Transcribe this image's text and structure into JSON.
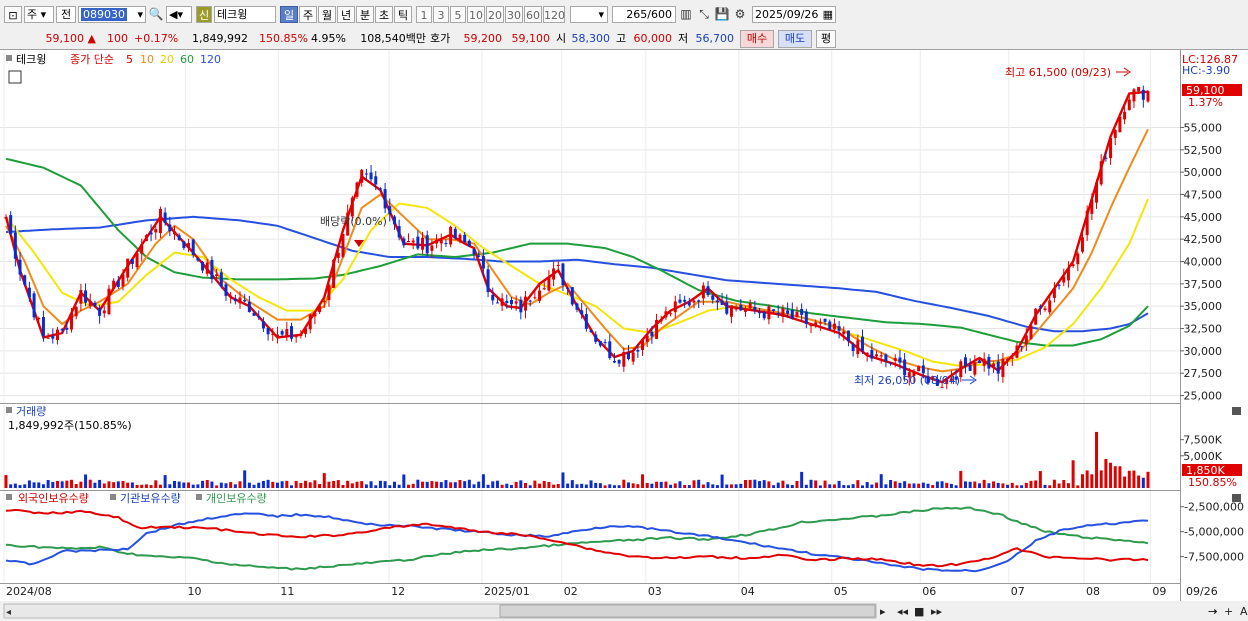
{
  "toolbar": {
    "market": "주",
    "prev_label": "전",
    "code": "089030",
    "shin_label": "신",
    "name": "테크윙",
    "periods": [
      "일",
      "주",
      "월",
      "년",
      "분",
      "초",
      "틱"
    ],
    "active_period": "일",
    "intervals": [
      "1",
      "3",
      "5",
      "10",
      "20",
      "30",
      "60",
      "120"
    ],
    "count": "265",
    "count_total": "/600",
    "date": "2025/09/26"
  },
  "quote": {
    "price": "59,100",
    "change": "100",
    "change_pct": "+0.17%",
    "volume": "1,849,992",
    "volume_ratio": "150.85%",
    "turnover_pct": "4.95%",
    "amount": "108,540백만",
    "ask_label": "호가",
    "ask": "59,200",
    "bid": "59,100",
    "open_label": "시",
    "open": "58,300",
    "high_label": "고",
    "high": "60,000",
    "low_label": "저",
    "low": "56,700",
    "buy_label": "매수",
    "sell_label": "매도",
    "eval_label": "평"
  },
  "price_panel": {
    "name_tag": "테크윙",
    "ma_title": "종가 단순",
    "ma_periods": [
      "5",
      "10",
      "20",
      "60",
      "120"
    ],
    "lc_label": "LC:126.87",
    "hc_label": "HC:-3.90",
    "current_price": "59,100",
    "current_pct": "1.37%",
    "high_note": "최고 61,500 (09/23)",
    "low_note": "최저 26,050 (08/04)",
    "dividend_note": "배당락(0.0%)"
  },
  "volume_panel": {
    "title": "거래량",
    "value": "1,849,992주(150.85%)",
    "current": "1,850K",
    "current_pct": "150.85%"
  },
  "holdings_panel": {
    "series": [
      "외국인보유수량",
      "기관보유수량",
      "개인보유수량"
    ]
  },
  "x_axis": {
    "month_labels": [
      "2024/08",
      "10",
      "11",
      "12",
      "2025/01",
      "02",
      "03",
      "04",
      "05",
      "06",
      "07",
      "08",
      "09"
    ],
    "end_label": "09/26"
  },
  "colors": {
    "up": "#e00000",
    "down": "#0a2bd0",
    "ma5": "#e00000",
    "ma10": "#f08a18",
    "ma20": "#f5e60a",
    "ma60": "#1e9e3a",
    "ma120": "#2650e0",
    "foreign": "#e00000",
    "institution": "#2650e0",
    "individual": "#2e9a4e"
  },
  "chart_data": {
    "type": "candlestick",
    "y_ticks": [
      "55,000",
      "52,500",
      "50,000",
      "47,500",
      "45,000",
      "42,500",
      "40,000",
      "37,500",
      "35,000",
      "32,500",
      "30,000",
      "27,500",
      "25,000"
    ],
    "ylim": [
      24500,
      63000
    ],
    "volume_ticks": [
      "7,500K",
      "5,000K"
    ],
    "holdings_ticks": [
      "-2,500,000",
      "-5,000,000",
      "-7,500,000"
    ],
    "ma_anchors": {
      "ma5": [
        [
          0,
          45000
        ],
        [
          3,
          39000
        ],
        [
          8,
          31500
        ],
        [
          12,
          32000
        ],
        [
          16,
          36500
        ],
        [
          20,
          34500
        ],
        [
          26,
          39500
        ],
        [
          33,
          45000
        ],
        [
          40,
          41000
        ],
        [
          48,
          36000
        ],
        [
          52,
          35000
        ],
        [
          58,
          31500
        ],
        [
          63,
          31800
        ],
        [
          68,
          36000
        ],
        [
          72,
          43500
        ],
        [
          76,
          49500
        ],
        [
          80,
          48000
        ],
        [
          85,
          42000
        ],
        [
          90,
          41800
        ],
        [
          95,
          43000
        ],
        [
          98,
          42000
        ],
        [
          100,
          41500
        ],
        [
          103,
          37000
        ],
        [
          107,
          35000
        ],
        [
          110,
          34800
        ],
        [
          114,
          37500
        ],
        [
          118,
          39000
        ],
        [
          122,
          35000
        ],
        [
          126,
          31500
        ],
        [
          130,
          29300
        ],
        [
          134,
          30000
        ],
        [
          138,
          32500
        ],
        [
          142,
          34500
        ],
        [
          146,
          35500
        ],
        [
          150,
          37000
        ],
        [
          154,
          35000
        ],
        [
          160,
          34500
        ],
        [
          166,
          34000
        ],
        [
          172,
          33000
        ],
        [
          178,
          32000
        ],
        [
          184,
          29500
        ],
        [
          190,
          28500
        ],
        [
          196,
          27200
        ],
        [
          200,
          26500
        ],
        [
          204,
          28000
        ],
        [
          208,
          29200
        ],
        [
          212,
          27800
        ],
        [
          216,
          30000
        ],
        [
          220,
          34000
        ],
        [
          224,
          37000
        ],
        [
          228,
          40000
        ],
        [
          232,
          47000
        ],
        [
          236,
          54000
        ],
        [
          240,
          58800
        ],
        [
          244,
          59000
        ]
      ],
      "ma10": [
        [
          0,
          44000
        ],
        [
          4,
          40000
        ],
        [
          8,
          35000
        ],
        [
          12,
          33000
        ],
        [
          16,
          34500
        ],
        [
          20,
          35500
        ],
        [
          26,
          37500
        ],
        [
          32,
          42000
        ],
        [
          36,
          44000
        ],
        [
          40,
          42500
        ],
        [
          46,
          38000
        ],
        [
          52,
          35500
        ],
        [
          58,
          33500
        ],
        [
          63,
          33500
        ],
        [
          68,
          35000
        ],
        [
          72,
          40500
        ],
        [
          76,
          46000
        ],
        [
          80,
          47500
        ],
        [
          85,
          45000
        ],
        [
          90,
          42500
        ],
        [
          95,
          42500
        ],
        [
          100,
          42000
        ],
        [
          104,
          39000
        ],
        [
          108,
          36000
        ],
        [
          112,
          35200
        ],
        [
          116,
          36500
        ],
        [
          120,
          37500
        ],
        [
          124,
          35000
        ],
        [
          128,
          32500
        ],
        [
          132,
          30200
        ],
        [
          136,
          30500
        ],
        [
          140,
          32500
        ],
        [
          144,
          34000
        ],
        [
          148,
          35500
        ],
        [
          154,
          35500
        ],
        [
          160,
          34800
        ],
        [
          166,
          34200
        ],
        [
          172,
          33500
        ],
        [
          178,
          32600
        ],
        [
          184,
          30600
        ],
        [
          190,
          29000
        ],
        [
          196,
          28100
        ],
        [
          200,
          27700
        ],
        [
          204,
          28000
        ],
        [
          208,
          28800
        ],
        [
          212,
          28900
        ],
        [
          216,
          29600
        ],
        [
          220,
          32000
        ],
        [
          224,
          34500
        ],
        [
          228,
          37000
        ],
        [
          232,
          41000
        ],
        [
          236,
          46000
        ],
        [
          240,
          50500
        ],
        [
          244,
          54800
        ]
      ],
      "ma20": [
        [
          0,
          45000
        ],
        [
          6,
          41000
        ],
        [
          12,
          36500
        ],
        [
          18,
          35000
        ],
        [
          24,
          35500
        ],
        [
          30,
          38500
        ],
        [
          36,
          41000
        ],
        [
          42,
          40500
        ],
        [
          48,
          38000
        ],
        [
          54,
          36000
        ],
        [
          60,
          34500
        ],
        [
          66,
          34500
        ],
        [
          72,
          38000
        ],
        [
          78,
          43500
        ],
        [
          84,
          46500
        ],
        [
          90,
          46000
        ],
        [
          96,
          44000
        ],
        [
          102,
          41500
        ],
        [
          108,
          39500
        ],
        [
          114,
          37500
        ],
        [
          120,
          36300
        ],
        [
          126,
          35000
        ],
        [
          132,
          32500
        ],
        [
          138,
          32000
        ],
        [
          144,
          33200
        ],
        [
          150,
          34500
        ],
        [
          156,
          35000
        ],
        [
          162,
          34600
        ],
        [
          168,
          34000
        ],
        [
          174,
          33200
        ],
        [
          180,
          32000
        ],
        [
          186,
          31000
        ],
        [
          192,
          30000
        ],
        [
          198,
          28800
        ],
        [
          204,
          28300
        ],
        [
          210,
          28500
        ],
        [
          216,
          29000
        ],
        [
          222,
          30400
        ],
        [
          228,
          33000
        ],
        [
          234,
          37000
        ],
        [
          240,
          42000
        ],
        [
          244,
          47000
        ]
      ],
      "ma60": [
        [
          0,
          51500
        ],
        [
          8,
          50500
        ],
        [
          16,
          48500
        ],
        [
          24,
          43500
        ],
        [
          30,
          40500
        ],
        [
          36,
          38800
        ],
        [
          42,
          38200
        ],
        [
          50,
          38000
        ],
        [
          58,
          38000
        ],
        [
          66,
          38100
        ],
        [
          72,
          38500
        ],
        [
          80,
          39500
        ],
        [
          88,
          40800
        ],
        [
          96,
          40500
        ],
        [
          104,
          41000
        ],
        [
          112,
          42000
        ],
        [
          120,
          42000
        ],
        [
          128,
          41500
        ],
        [
          134,
          40500
        ],
        [
          140,
          39000
        ],
        [
          148,
          36800
        ],
        [
          156,
          35600
        ],
        [
          164,
          35000
        ],
        [
          172,
          34200
        ],
        [
          180,
          33700
        ],
        [
          188,
          33200
        ],
        [
          196,
          33000
        ],
        [
          204,
          32600
        ],
        [
          210,
          31800
        ],
        [
          216,
          31000
        ],
        [
          222,
          30600
        ],
        [
          228,
          30600
        ],
        [
          234,
          31300
        ],
        [
          240,
          32800
        ],
        [
          244,
          35000
        ]
      ],
      "ma120": [
        [
          0,
          43300
        ],
        [
          10,
          43600
        ],
        [
          20,
          43800
        ],
        [
          30,
          44600
        ],
        [
          40,
          45000
        ],
        [
          50,
          44600
        ],
        [
          58,
          44000
        ],
        [
          66,
          42600
        ],
        [
          74,
          41200
        ],
        [
          82,
          40500
        ],
        [
          90,
          40500
        ],
        [
          98,
          40300
        ],
        [
          106,
          40000
        ],
        [
          114,
          40000
        ],
        [
          122,
          40200
        ],
        [
          130,
          39700
        ],
        [
          138,
          39300
        ],
        [
          146,
          38600
        ],
        [
          154,
          37900
        ],
        [
          162,
          37600
        ],
        [
          170,
          37300
        ],
        [
          178,
          37000
        ],
        [
          186,
          36600
        ],
        [
          194,
          35600
        ],
        [
          202,
          34800
        ],
        [
          210,
          33900
        ],
        [
          218,
          32700
        ],
        [
          224,
          32200
        ],
        [
          230,
          32200
        ],
        [
          236,
          32500
        ],
        [
          240,
          33000
        ],
        [
          244,
          34200
        ]
      ]
    },
    "holdings_anchors": {
      "foreign": [
        [
          0,
          0.1
        ],
        [
          8,
          0.15
        ],
        [
          16,
          0.12
        ],
        [
          24,
          0.2
        ],
        [
          28,
          0.33
        ],
        [
          36,
          0.32
        ],
        [
          44,
          0.34
        ],
        [
          52,
          0.4
        ],
        [
          62,
          0.45
        ],
        [
          72,
          0.42
        ],
        [
          82,
          0.33
        ],
        [
          90,
          0.28
        ],
        [
          100,
          0.37
        ],
        [
          110,
          0.42
        ],
        [
          118,
          0.5
        ],
        [
          126,
          0.62
        ],
        [
          134,
          0.7
        ],
        [
          142,
          0.72
        ],
        [
          150,
          0.7
        ],
        [
          158,
          0.72
        ],
        [
          166,
          0.68
        ],
        [
          172,
          0.75
        ],
        [
          180,
          0.72
        ],
        [
          188,
          0.74
        ],
        [
          196,
          0.82
        ],
        [
          204,
          0.8
        ],
        [
          210,
          0.72
        ],
        [
          216,
          0.6
        ],
        [
          222,
          0.7
        ],
        [
          230,
          0.72
        ],
        [
          236,
          0.74
        ],
        [
          244,
          0.74
        ]
      ],
      "institution": [
        [
          0,
          0.75
        ],
        [
          6,
          0.8
        ],
        [
          12,
          0.63
        ],
        [
          20,
          0.62
        ],
        [
          26,
          0.6
        ],
        [
          30,
          0.4
        ],
        [
          36,
          0.3
        ],
        [
          40,
          0.25
        ],
        [
          46,
          0.18
        ],
        [
          52,
          0.15
        ],
        [
          58,
          0.18
        ],
        [
          64,
          0.16
        ],
        [
          70,
          0.2
        ],
        [
          76,
          0.28
        ],
        [
          84,
          0.3
        ],
        [
          92,
          0.34
        ],
        [
          100,
          0.38
        ],
        [
          108,
          0.42
        ],
        [
          116,
          0.44
        ],
        [
          124,
          0.35
        ],
        [
          130,
          0.3
        ],
        [
          136,
          0.33
        ],
        [
          142,
          0.38
        ],
        [
          150,
          0.44
        ],
        [
          158,
          0.52
        ],
        [
          166,
          0.6
        ],
        [
          174,
          0.68
        ],
        [
          182,
          0.74
        ],
        [
          190,
          0.82
        ],
        [
          196,
          0.86
        ],
        [
          202,
          0.88
        ],
        [
          208,
          0.88
        ],
        [
          214,
          0.75
        ],
        [
          220,
          0.5
        ],
        [
          226,
          0.35
        ],
        [
          232,
          0.3
        ],
        [
          236,
          0.28
        ],
        [
          244,
          0.24
        ]
      ],
      "individual": [
        [
          0,
          0.55
        ],
        [
          8,
          0.58
        ],
        [
          14,
          0.6
        ],
        [
          20,
          0.58
        ],
        [
          26,
          0.66
        ],
        [
          32,
          0.7
        ],
        [
          40,
          0.72
        ],
        [
          48,
          0.8
        ],
        [
          56,
          0.84
        ],
        [
          62,
          0.86
        ],
        [
          70,
          0.82
        ],
        [
          78,
          0.78
        ],
        [
          86,
          0.74
        ],
        [
          92,
          0.68
        ],
        [
          100,
          0.62
        ],
        [
          108,
          0.6
        ],
        [
          116,
          0.56
        ],
        [
          124,
          0.52
        ],
        [
          130,
          0.5
        ],
        [
          136,
          0.48
        ],
        [
          142,
          0.46
        ],
        [
          150,
          0.48
        ],
        [
          158,
          0.42
        ],
        [
          164,
          0.35
        ],
        [
          170,
          0.26
        ],
        [
          178,
          0.22
        ],
        [
          186,
          0.18
        ],
        [
          194,
          0.12
        ],
        [
          200,
          0.08
        ],
        [
          206,
          0.08
        ],
        [
          212,
          0.15
        ],
        [
          216,
          0.25
        ],
        [
          222,
          0.38
        ],
        [
          230,
          0.45
        ],
        [
          236,
          0.48
        ],
        [
          244,
          0.52
        ]
      ]
    }
  }
}
